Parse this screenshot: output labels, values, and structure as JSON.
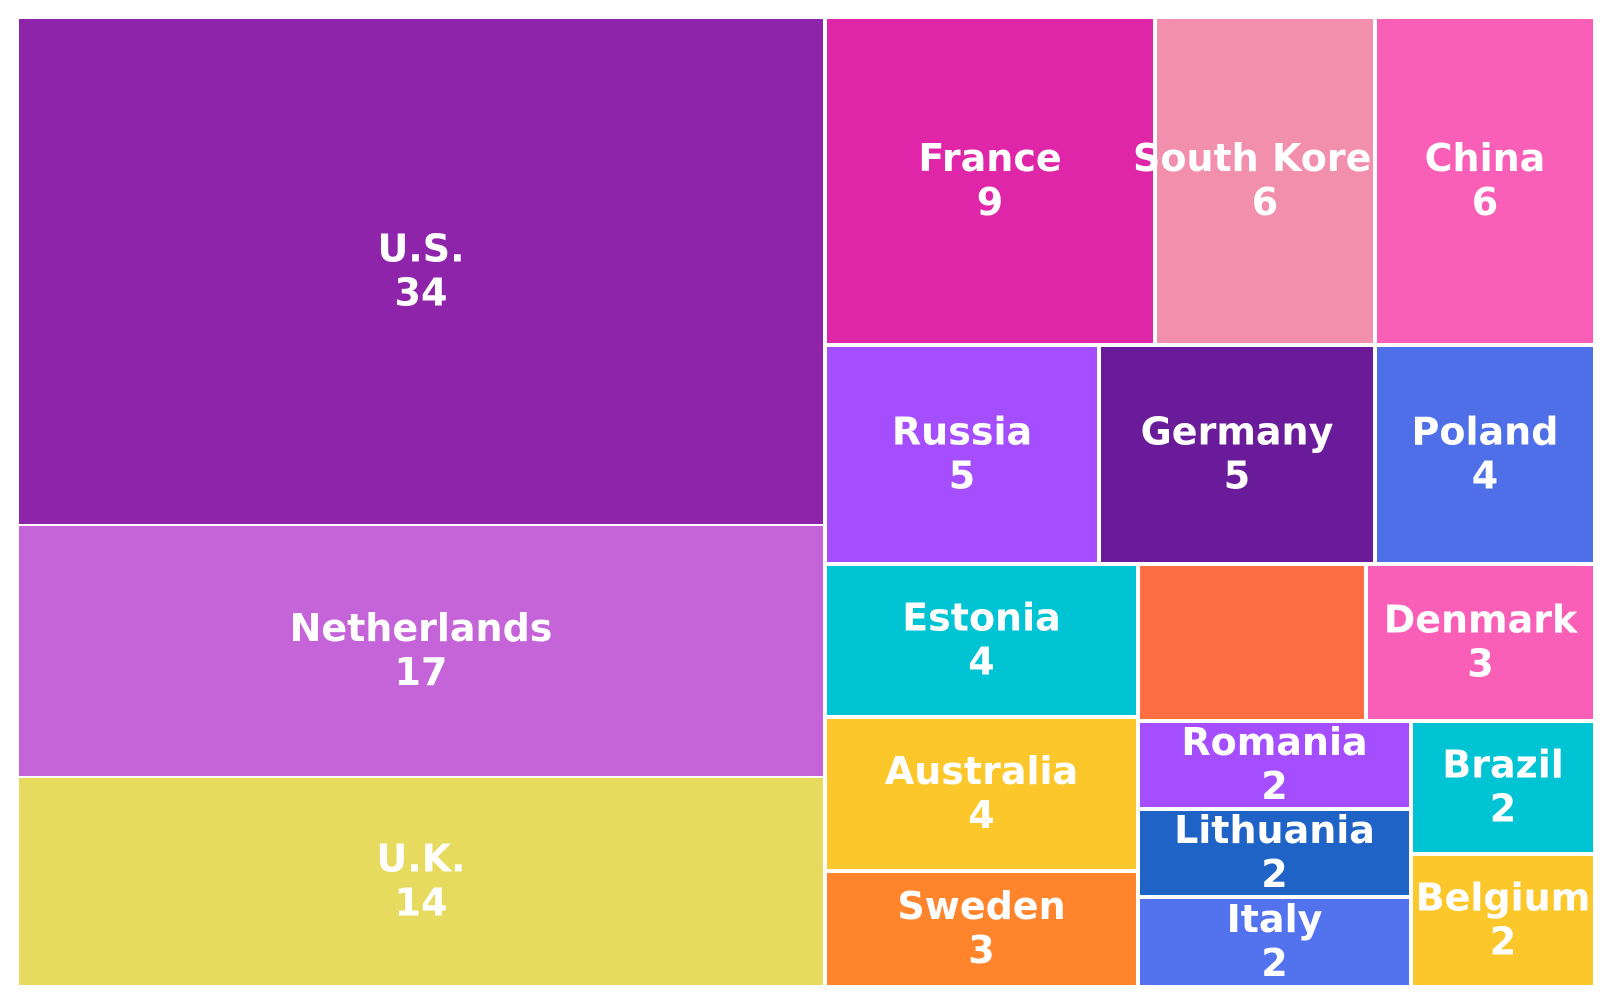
{
  "chart_data": {
    "type": "treemap",
    "title": "",
    "items": [
      {
        "name": "U.S.",
        "value": 34,
        "color": "#8e24aa"
      },
      {
        "name": "Netherlands",
        "value": 17,
        "color": "#c564d9"
      },
      {
        "name": "U.K.",
        "value": 14,
        "color": "#e6da5f"
      },
      {
        "name": "France",
        "value": 9,
        "color": "#e026a8"
      },
      {
        "name": "South Korea",
        "value": 6,
        "color": "#f28fad"
      },
      {
        "name": "China",
        "value": 6,
        "color": "#f95fb7"
      },
      {
        "name": "Russia",
        "value": 5,
        "color": "#a44eff"
      },
      {
        "name": "Germany",
        "value": 5,
        "color": "#6a1b9a"
      },
      {
        "name": "Poland",
        "value": 4,
        "color": "#4f6fe8"
      },
      {
        "name": "Estonia",
        "value": 4,
        "color": "#00c4d4"
      },
      {
        "name": "",
        "value": null,
        "color": "#ff6e43"
      },
      {
        "name": "Denmark",
        "value": 3,
        "color": "#f95fb7"
      },
      {
        "name": "Australia",
        "value": 4,
        "color": "#fcc72a"
      },
      {
        "name": "Sweden",
        "value": 3,
        "color": "#ff842c"
      },
      {
        "name": "Romania",
        "value": 2,
        "color": "#a44eff"
      },
      {
        "name": "Lithuania",
        "value": 2,
        "color": "#1f63c7"
      },
      {
        "name": "Italy",
        "value": 2,
        "color": "#5272ee"
      },
      {
        "name": "Brazil",
        "value": 2,
        "color": "#00c4d4"
      },
      {
        "name": "Belgium",
        "value": 2,
        "color": "#fcc72a"
      }
    ]
  }
}
